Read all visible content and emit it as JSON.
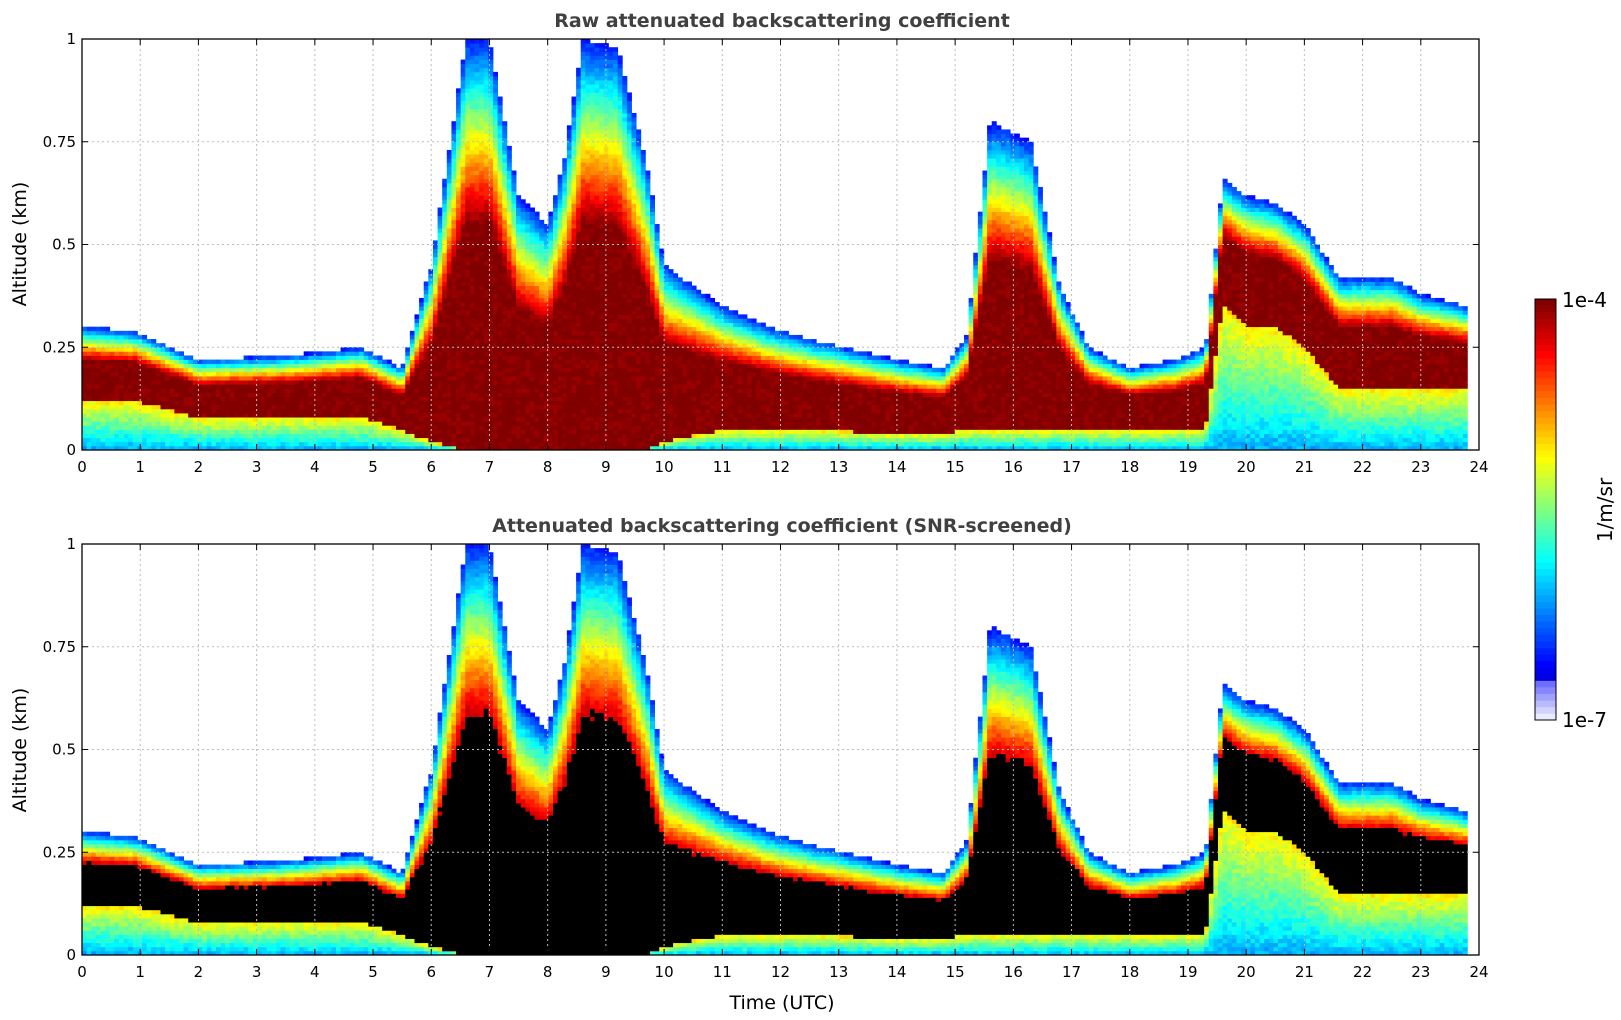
{
  "chart_data": [
    {
      "type": "heatmap",
      "title": "Raw attenuated backscattering coefficient",
      "xlabel": "",
      "ylabel": "Altitude (km)",
      "xlim": [
        0,
        24
      ],
      "ylim": [
        0,
        1
      ],
      "xticks": [
        0,
        1,
        2,
        3,
        4,
        5,
        6,
        7,
        8,
        9,
        10,
        11,
        12,
        13,
        14,
        15,
        16,
        17,
        18,
        19,
        20,
        21,
        22,
        23,
        24
      ],
      "yticks": [
        0,
        0.25,
        0.5,
        0.75,
        1
      ],
      "ytick_labels": [
        "0",
        "0.25",
        "0.5",
        "0.75",
        "1"
      ],
      "grid": true,
      "screened": false
    },
    {
      "type": "heatmap",
      "title": "Attenuated backscattering coefficient (SNR-screened)",
      "xlabel": "Time (UTC)",
      "ylabel": "Altitude (km)",
      "xlim": [
        0,
        24
      ],
      "ylim": [
        0,
        1
      ],
      "xticks": [
        0,
        1,
        2,
        3,
        4,
        5,
        6,
        7,
        8,
        9,
        10,
        11,
        12,
        13,
        14,
        15,
        16,
        17,
        18,
        19,
        20,
        21,
        22,
        23,
        24
      ],
      "yticks": [
        0,
        0.25,
        0.5,
        0.75,
        1
      ],
      "ytick_labels": [
        "0",
        "0.25",
        "0.5",
        "0.75",
        "1"
      ],
      "grid": true,
      "screened": true
    }
  ],
  "colorbar": {
    "label": "1/m/sr",
    "max_label": "1e-4",
    "min_label": "1e-7",
    "scale": "log",
    "range": [
      1e-07,
      0.0001
    ],
    "colormap": "jet",
    "screened_color": "#000000"
  },
  "regimes": [
    {
      "t": 0.0,
      "base": 0.12,
      "top": 0.3
    },
    {
      "t": 0.9,
      "base": 0.12,
      "top": 0.29
    },
    {
      "t": 2.0,
      "base": 0.08,
      "top": 0.22
    },
    {
      "t": 3.5,
      "base": 0.08,
      "top": 0.23
    },
    {
      "t": 4.8,
      "base": 0.08,
      "top": 0.25
    },
    {
      "t": 5.5,
      "base": 0.05,
      "top": 0.2
    },
    {
      "t": 6.0,
      "base": 0.02,
      "top": 0.45
    },
    {
      "t": 6.6,
      "base": 0.0,
      "top": 1.0
    },
    {
      "t": 7.0,
      "base": 0.0,
      "top": 1.0
    },
    {
      "t": 7.5,
      "base": 0.0,
      "top": 0.62
    },
    {
      "t": 8.0,
      "base": 0.0,
      "top": 0.55
    },
    {
      "t": 8.3,
      "base": 0.0,
      "top": 0.72
    },
    {
      "t": 8.6,
      "base": 0.0,
      "top": 1.0
    },
    {
      "t": 9.2,
      "base": 0.0,
      "top": 0.98
    },
    {
      "t": 9.7,
      "base": 0.0,
      "top": 0.7
    },
    {
      "t": 10.0,
      "base": 0.02,
      "top": 0.45
    },
    {
      "t": 11.0,
      "base": 0.05,
      "top": 0.35
    },
    {
      "t": 11.8,
      "base": 0.05,
      "top": 0.3
    },
    {
      "t": 12.5,
      "base": 0.05,
      "top": 0.27
    },
    {
      "t": 14.0,
      "base": 0.04,
      "top": 0.22
    },
    {
      "t": 14.8,
      "base": 0.04,
      "top": 0.2
    },
    {
      "t": 15.2,
      "base": 0.05,
      "top": 0.28
    },
    {
      "t": 15.6,
      "base": 0.05,
      "top": 0.8
    },
    {
      "t": 16.3,
      "base": 0.05,
      "top": 0.75
    },
    {
      "t": 16.8,
      "base": 0.05,
      "top": 0.4
    },
    {
      "t": 17.3,
      "base": 0.05,
      "top": 0.25
    },
    {
      "t": 18.0,
      "base": 0.05,
      "top": 0.2
    },
    {
      "t": 18.8,
      "base": 0.05,
      "top": 0.22
    },
    {
      "t": 19.3,
      "base": 0.05,
      "top": 0.25
    },
    {
      "t": 19.6,
      "base": 0.35,
      "top": 0.66
    },
    {
      "t": 20.0,
      "base": 0.3,
      "top": 0.62
    },
    {
      "t": 20.5,
      "base": 0.3,
      "top": 0.6
    },
    {
      "t": 21.0,
      "base": 0.25,
      "top": 0.55
    },
    {
      "t": 21.6,
      "base": 0.15,
      "top": 0.42
    },
    {
      "t": 22.5,
      "base": 0.15,
      "top": 0.42
    },
    {
      "t": 23.0,
      "base": 0.15,
      "top": 0.38
    },
    {
      "t": 23.8,
      "base": 0.15,
      "top": 0.35
    }
  ]
}
